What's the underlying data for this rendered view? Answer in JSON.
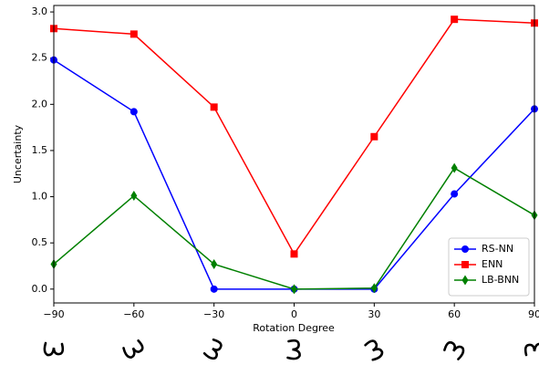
{
  "chart_data": {
    "type": "line",
    "x_label": "Rotation Degree",
    "y_label": "Uncertainty",
    "x": [
      -90,
      -60,
      -30,
      0,
      30,
      60,
      90
    ],
    "series": [
      {
        "name": "RS-NN",
        "color": "#0000ff",
        "marker": "circle",
        "values": [
          2.48,
          1.92,
          0.0,
          0.0,
          0.0,
          1.03,
          1.95
        ]
      },
      {
        "name": "ENN",
        "color": "#ff0000",
        "marker": "square",
        "values": [
          2.82,
          2.76,
          1.97,
          0.38,
          1.65,
          2.92,
          2.88
        ]
      },
      {
        "name": "LB-BNN",
        "color": "#008000",
        "marker": "diamond",
        "values": [
          0.27,
          1.01,
          0.27,
          0.0,
          0.01,
          1.31,
          0.8
        ]
      }
    ],
    "xlim": [
      -90,
      90
    ],
    "xticks": [
      {
        "value": -90,
        "label": "−90"
      },
      {
        "value": -60,
        "label": "−60"
      },
      {
        "value": -30,
        "label": "−30"
      },
      0,
      30,
      60,
      90
    ],
    "ylim": [
      -0.15,
      3.07
    ],
    "yticks": [
      {
        "value": 0,
        "label": "0.0"
      },
      {
        "value": 0.5,
        "label": "0.5"
      },
      {
        "value": 1,
        "label": "1.0"
      },
      {
        "value": 1.5,
        "label": "1.5"
      },
      {
        "value": 2,
        "label": "2.0"
      },
      {
        "value": 2.5,
        "label": "2.5"
      },
      {
        "value": 3,
        "label": "3.0"
      }
    ],
    "legend": "lower right"
  }
}
